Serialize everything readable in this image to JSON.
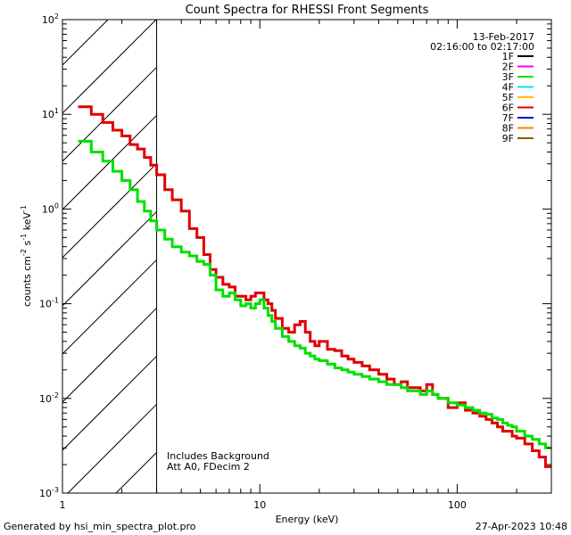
{
  "chart_data": {
    "type": "line",
    "title": "Count Spectra for RHESSI Front Segments",
    "xlabel": "Energy (keV)",
    "ylabel_parts": [
      "counts cm",
      "-2",
      " s",
      "-1",
      " keV",
      "-1"
    ],
    "x_scale": "log",
    "y_scale": "log",
    "xlim": [
      1,
      300
    ],
    "ylim": [
      0.001,
      100
    ],
    "x_ticks": [
      {
        "v": 1,
        "label": "1"
      },
      {
        "v": 10,
        "label": "10"
      },
      {
        "v": 100,
        "label": "100"
      }
    ],
    "y_ticks": [
      {
        "v": 0.001,
        "base": "10",
        "exp": "-3"
      },
      {
        "v": 0.01,
        "base": "10",
        "exp": "-2"
      },
      {
        "v": 0.1,
        "base": "10",
        "exp": "-1"
      },
      {
        "v": 1,
        "base": "10",
        "exp": "0"
      },
      {
        "v": 10,
        "base": "10",
        "exp": "1"
      },
      {
        "v": 100,
        "base": "10",
        "exp": "2"
      }
    ],
    "shaded_region_max_keV": 3,
    "date": "13-Feb-2017",
    "time_range": "02:16:00 to 02:17:00",
    "legend": [
      {
        "label": "1F",
        "color": "#000000"
      },
      {
        "label": "2F",
        "color": "#ff00ff"
      },
      {
        "label": "3F",
        "color": "#00e000"
      },
      {
        "label": "4F",
        "color": "#00e0ff"
      },
      {
        "label": "5F",
        "color": "#ffc000"
      },
      {
        "label": "6F",
        "color": "#e00000"
      },
      {
        "label": "7F",
        "color": "#0000d0"
      },
      {
        "label": "8F",
        "color": "#ff8000"
      },
      {
        "label": "9F",
        "color": "#806000"
      }
    ],
    "annotations": [
      "Includes Background",
      "Att A0, FDecim 2"
    ],
    "series": [
      {
        "name": "6F",
        "color": "#e00000",
        "edges": [
          1.2,
          1.4,
          1.6,
          1.8,
          2.0,
          2.2,
          2.4,
          2.6,
          2.8,
          3.0,
          3.3,
          3.6,
          4.0,
          4.4,
          4.8,
          5.2,
          5.6,
          6.0,
          6.5,
          7.0,
          7.5,
          8.0,
          8.5,
          9.0,
          9.5,
          10,
          10.5,
          11,
          11.5,
          12,
          13,
          14,
          15,
          16,
          17,
          18,
          19,
          20,
          22,
          24,
          26,
          28,
          30,
          33,
          36,
          40,
          44,
          48,
          52,
          56,
          60,
          65,
          70,
          75,
          80,
          90,
          100,
          110,
          120,
          130,
          140,
          150,
          160,
          170,
          180,
          190,
          200,
          220,
          240,
          260,
          280,
          300
        ],
        "values": [
          12,
          10,
          8.2,
          6.8,
          5.9,
          4.8,
          4.3,
          3.5,
          2.9,
          2.3,
          1.6,
          1.25,
          0.95,
          0.62,
          0.5,
          0.33,
          0.23,
          0.19,
          0.16,
          0.15,
          0.12,
          0.12,
          0.11,
          0.12,
          0.13,
          0.13,
          0.11,
          0.1,
          0.085,
          0.07,
          0.055,
          0.05,
          0.06,
          0.065,
          0.05,
          0.04,
          0.036,
          0.04,
          0.033,
          0.032,
          0.028,
          0.026,
          0.024,
          0.022,
          0.02,
          0.018,
          0.016,
          0.014,
          0.015,
          0.013,
          0.013,
          0.012,
          0.014,
          0.011,
          0.01,
          0.008,
          0.009,
          0.0075,
          0.007,
          0.0065,
          0.006,
          0.0055,
          0.005,
          0.0045,
          0.0045,
          0.004,
          0.0038,
          0.0033,
          0.0028,
          0.0024,
          0.0019
        ]
      },
      {
        "name": "3F",
        "color": "#00e000",
        "edges": [
          1.2,
          1.4,
          1.6,
          1.8,
          2.0,
          2.2,
          2.4,
          2.6,
          2.8,
          3.0,
          3.3,
          3.6,
          4.0,
          4.4,
          4.8,
          5.2,
          5.6,
          6.0,
          6.5,
          7.0,
          7.5,
          8.0,
          8.5,
          9.0,
          9.5,
          10,
          10.5,
          11,
          11.5,
          12,
          13,
          14,
          15,
          16,
          17,
          18,
          19,
          20,
          22,
          24,
          26,
          28,
          30,
          33,
          36,
          40,
          44,
          48,
          52,
          56,
          60,
          65,
          70,
          75,
          80,
          90,
          100,
          110,
          120,
          130,
          140,
          150,
          160,
          170,
          180,
          190,
          200,
          220,
          240,
          260,
          280,
          300
        ],
        "values": [
          5.2,
          4.0,
          3.2,
          2.5,
          2.0,
          1.6,
          1.2,
          0.95,
          0.75,
          0.6,
          0.48,
          0.4,
          0.35,
          0.32,
          0.28,
          0.26,
          0.2,
          0.14,
          0.12,
          0.13,
          0.11,
          0.095,
          0.1,
          0.09,
          0.1,
          0.11,
          0.09,
          0.075,
          0.065,
          0.055,
          0.045,
          0.04,
          0.036,
          0.034,
          0.03,
          0.028,
          0.026,
          0.025,
          0.023,
          0.021,
          0.02,
          0.019,
          0.018,
          0.017,
          0.016,
          0.015,
          0.014,
          0.014,
          0.013,
          0.012,
          0.012,
          0.011,
          0.012,
          0.011,
          0.01,
          0.009,
          0.0085,
          0.008,
          0.0075,
          0.007,
          0.0068,
          0.0062,
          0.006,
          0.0055,
          0.0052,
          0.005,
          0.0045,
          0.004,
          0.0037,
          0.0033,
          0.003
        ]
      }
    ]
  },
  "footer": {
    "left": "Generated by hsi_min_spectra_plot.pro",
    "right": "27-Apr-2023 10:48"
  }
}
